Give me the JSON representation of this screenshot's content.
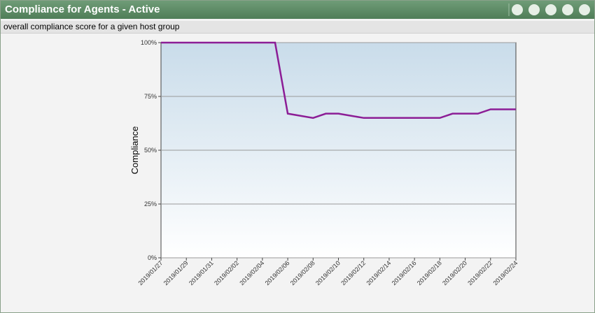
{
  "header": {
    "title": "Compliance for Agents - Active"
  },
  "subtitle": "overall compliance score for a given host group",
  "chart_data": {
    "type": "line",
    "y_label": "Compliance",
    "categories": [
      "2019/01/27",
      null,
      "2019/01/29",
      null,
      "2019/01/31",
      null,
      "2019/02/02",
      null,
      "2019/02/04",
      null,
      "2019/02/06",
      null,
      "2019/02/08",
      null,
      "2019/02/10",
      null,
      "2019/02/12",
      null,
      "2019/02/14",
      null,
      "2019/02/16",
      null,
      "2019/02/18",
      null,
      "2019/02/20",
      null,
      "2019/02/22",
      null,
      "2019/02/24"
    ],
    "values": [
      100,
      100,
      100,
      100,
      100,
      100,
      100,
      100,
      100,
      100,
      67,
      66,
      65,
      67,
      67,
      66,
      65,
      65,
      65,
      65,
      65,
      65,
      65,
      67,
      67,
      67,
      69,
      69,
      69
    ],
    "color": "#8c1d96",
    "ylim": [
      0,
      100
    ],
    "yticks": [
      {
        "value": 0,
        "label": "0%"
      },
      {
        "value": 25,
        "label": "25%"
      },
      {
        "value": 50,
        "label": "50%"
      },
      {
        "value": 75,
        "label": "75%"
      },
      {
        "value": 100,
        "label": "100%"
      }
    ],
    "grid": true
  }
}
